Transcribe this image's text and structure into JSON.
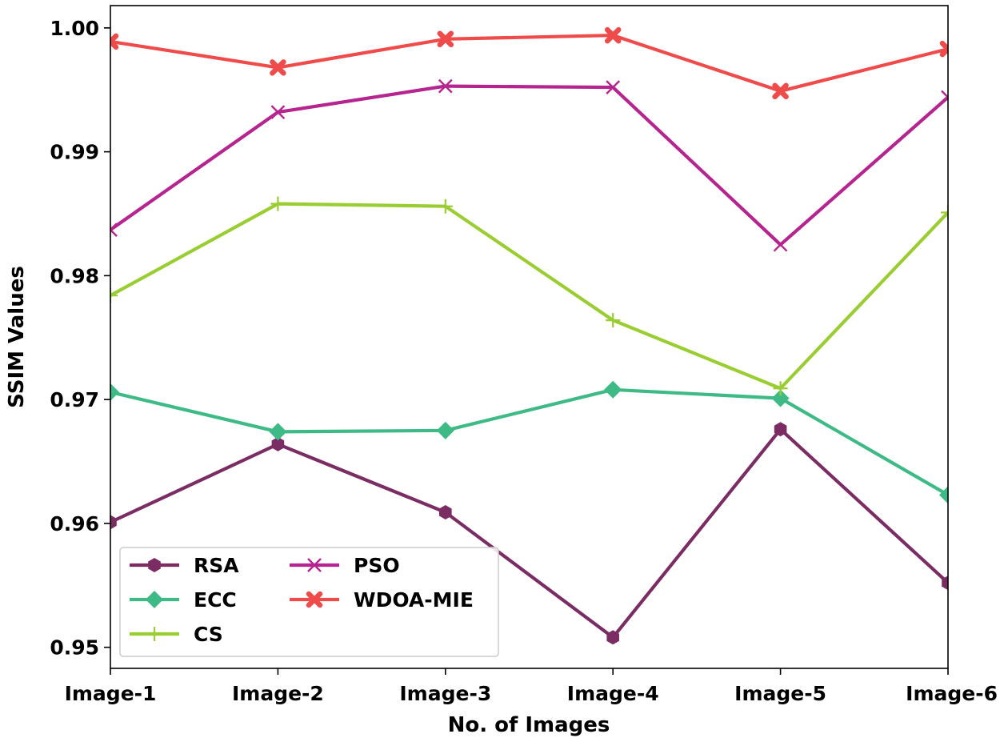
{
  "chart_data": {
    "type": "line",
    "title": "",
    "xlabel": "No. of Images",
    "ylabel": "SSIM Values",
    "categories": [
      "Image-1",
      "Image-2",
      "Image-3",
      "Image-4",
      "Image-5",
      "Image-6"
    ],
    "ylim": [
      0.9483,
      1.0018
    ],
    "yticks": [
      0.95,
      0.96,
      0.97,
      0.98,
      0.99,
      1.0
    ],
    "ytick_labels": [
      "0.95",
      "0.96",
      "0.97",
      "0.98",
      "0.99",
      "1.00"
    ],
    "grid": false,
    "legend_position": "lower-left",
    "series": [
      {
        "name": "RSA",
        "color": "#7b2d63",
        "marker": "hexagon",
        "values": [
          0.9601,
          0.9664,
          0.9609,
          0.9508,
          0.9676,
          0.9552
        ]
      },
      {
        "name": "ECC",
        "color": "#3dba86",
        "marker": "diamond",
        "values": [
          0.9706,
          0.9674,
          0.9675,
          0.9708,
          0.9701,
          0.9623
        ]
      },
      {
        "name": "CS",
        "color": "#9acd32",
        "marker": "plus",
        "values": [
          0.9784,
          0.9858,
          0.9856,
          0.9764,
          0.9709,
          0.9851
        ]
      },
      {
        "name": "PSO",
        "color": "#b5248f",
        "marker": "x",
        "values": [
          0.9837,
          0.9932,
          0.9953,
          0.9952,
          0.9825,
          0.9944
        ]
      },
      {
        "name": "WDOA-MIE",
        "color": "#ef4b4b",
        "marker": "x-filled",
        "values": [
          0.9989,
          0.9968,
          0.9991,
          0.9994,
          0.9949,
          0.9983
        ]
      }
    ]
  }
}
